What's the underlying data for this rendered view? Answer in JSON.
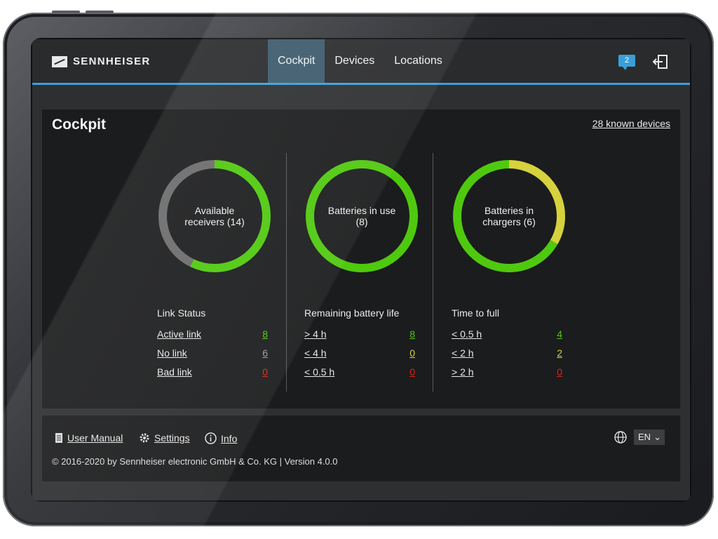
{
  "brand": {
    "name": "SENNHEISER"
  },
  "nav": {
    "tabs": [
      {
        "label": "Cockpit",
        "active": true
      },
      {
        "label": "Devices",
        "active": false
      },
      {
        "label": "Locations",
        "active": false
      }
    ],
    "chat_badge": "2"
  },
  "main": {
    "title": "Cockpit",
    "known_devices": "28 known devices"
  },
  "colors": {
    "accent": "#3aa0d8",
    "green": "#4fc90e",
    "yellow": "#d6d23e",
    "gray": "#6b6b6b",
    "red": "#e0241b"
  },
  "panels": [
    {
      "ring_label": "Available receivers (14)",
      "ring_segments": [
        {
          "value": 8,
          "color": "#4fc90e"
        },
        {
          "value": 6,
          "color": "#6b6b6b"
        }
      ],
      "stats_title": "Link Status",
      "rows": [
        {
          "label": "Active link",
          "value": "8",
          "color": "#4fc90e"
        },
        {
          "label": "No link",
          "value": "6",
          "color": "#9a9a9a"
        },
        {
          "label": "Bad link",
          "value": "0",
          "color": "#e0241b"
        }
      ]
    },
    {
      "ring_label": "Batteries in use (8)",
      "ring_segments": [
        {
          "value": 8,
          "color": "#4fc90e"
        }
      ],
      "stats_title": "Remaining battery life",
      "rows": [
        {
          "label": "> 4 h",
          "value": "8",
          "color": "#4fc90e"
        },
        {
          "label": "< 4 h",
          "value": "0",
          "color": "#d6d23e"
        },
        {
          "label": "< 0.5 h",
          "value": "0",
          "color": "#e0241b"
        }
      ]
    },
    {
      "ring_label": "Batteries in chargers (6)",
      "ring_segments": [
        {
          "value": 2,
          "color": "#d6d23e"
        },
        {
          "value": 4,
          "color": "#4fc90e"
        }
      ],
      "stats_title": "Time to full",
      "rows": [
        {
          "label": "< 0.5 h",
          "value": "4",
          "color": "#4fc90e"
        },
        {
          "label": "< 2 h",
          "value": "2",
          "color": "#d6d23e"
        },
        {
          "label": "> 2 h",
          "value": "0",
          "color": "#e0241b"
        }
      ]
    }
  ],
  "footer": {
    "user_manual": "User Manual",
    "settings": "Settings",
    "info": "Info",
    "copyright": "© 2016-2020 by Sennheiser electronic GmbH & Co. KG | Version 4.0.0",
    "language": "EN"
  }
}
